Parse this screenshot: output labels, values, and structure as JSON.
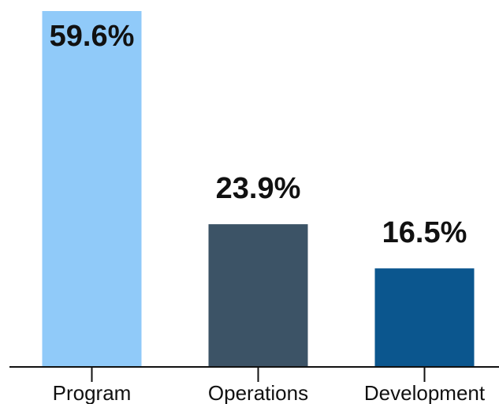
{
  "chart_data": {
    "type": "bar",
    "categories": [
      "Program",
      "Operations",
      "Development"
    ],
    "values": [
      59.6,
      23.9,
      16.5
    ],
    "value_labels": [
      "59.6%",
      "23.9%",
      "16.5%"
    ],
    "colors": [
      "#90caf9",
      "#3c5366",
      "#0b568e"
    ]
  }
}
